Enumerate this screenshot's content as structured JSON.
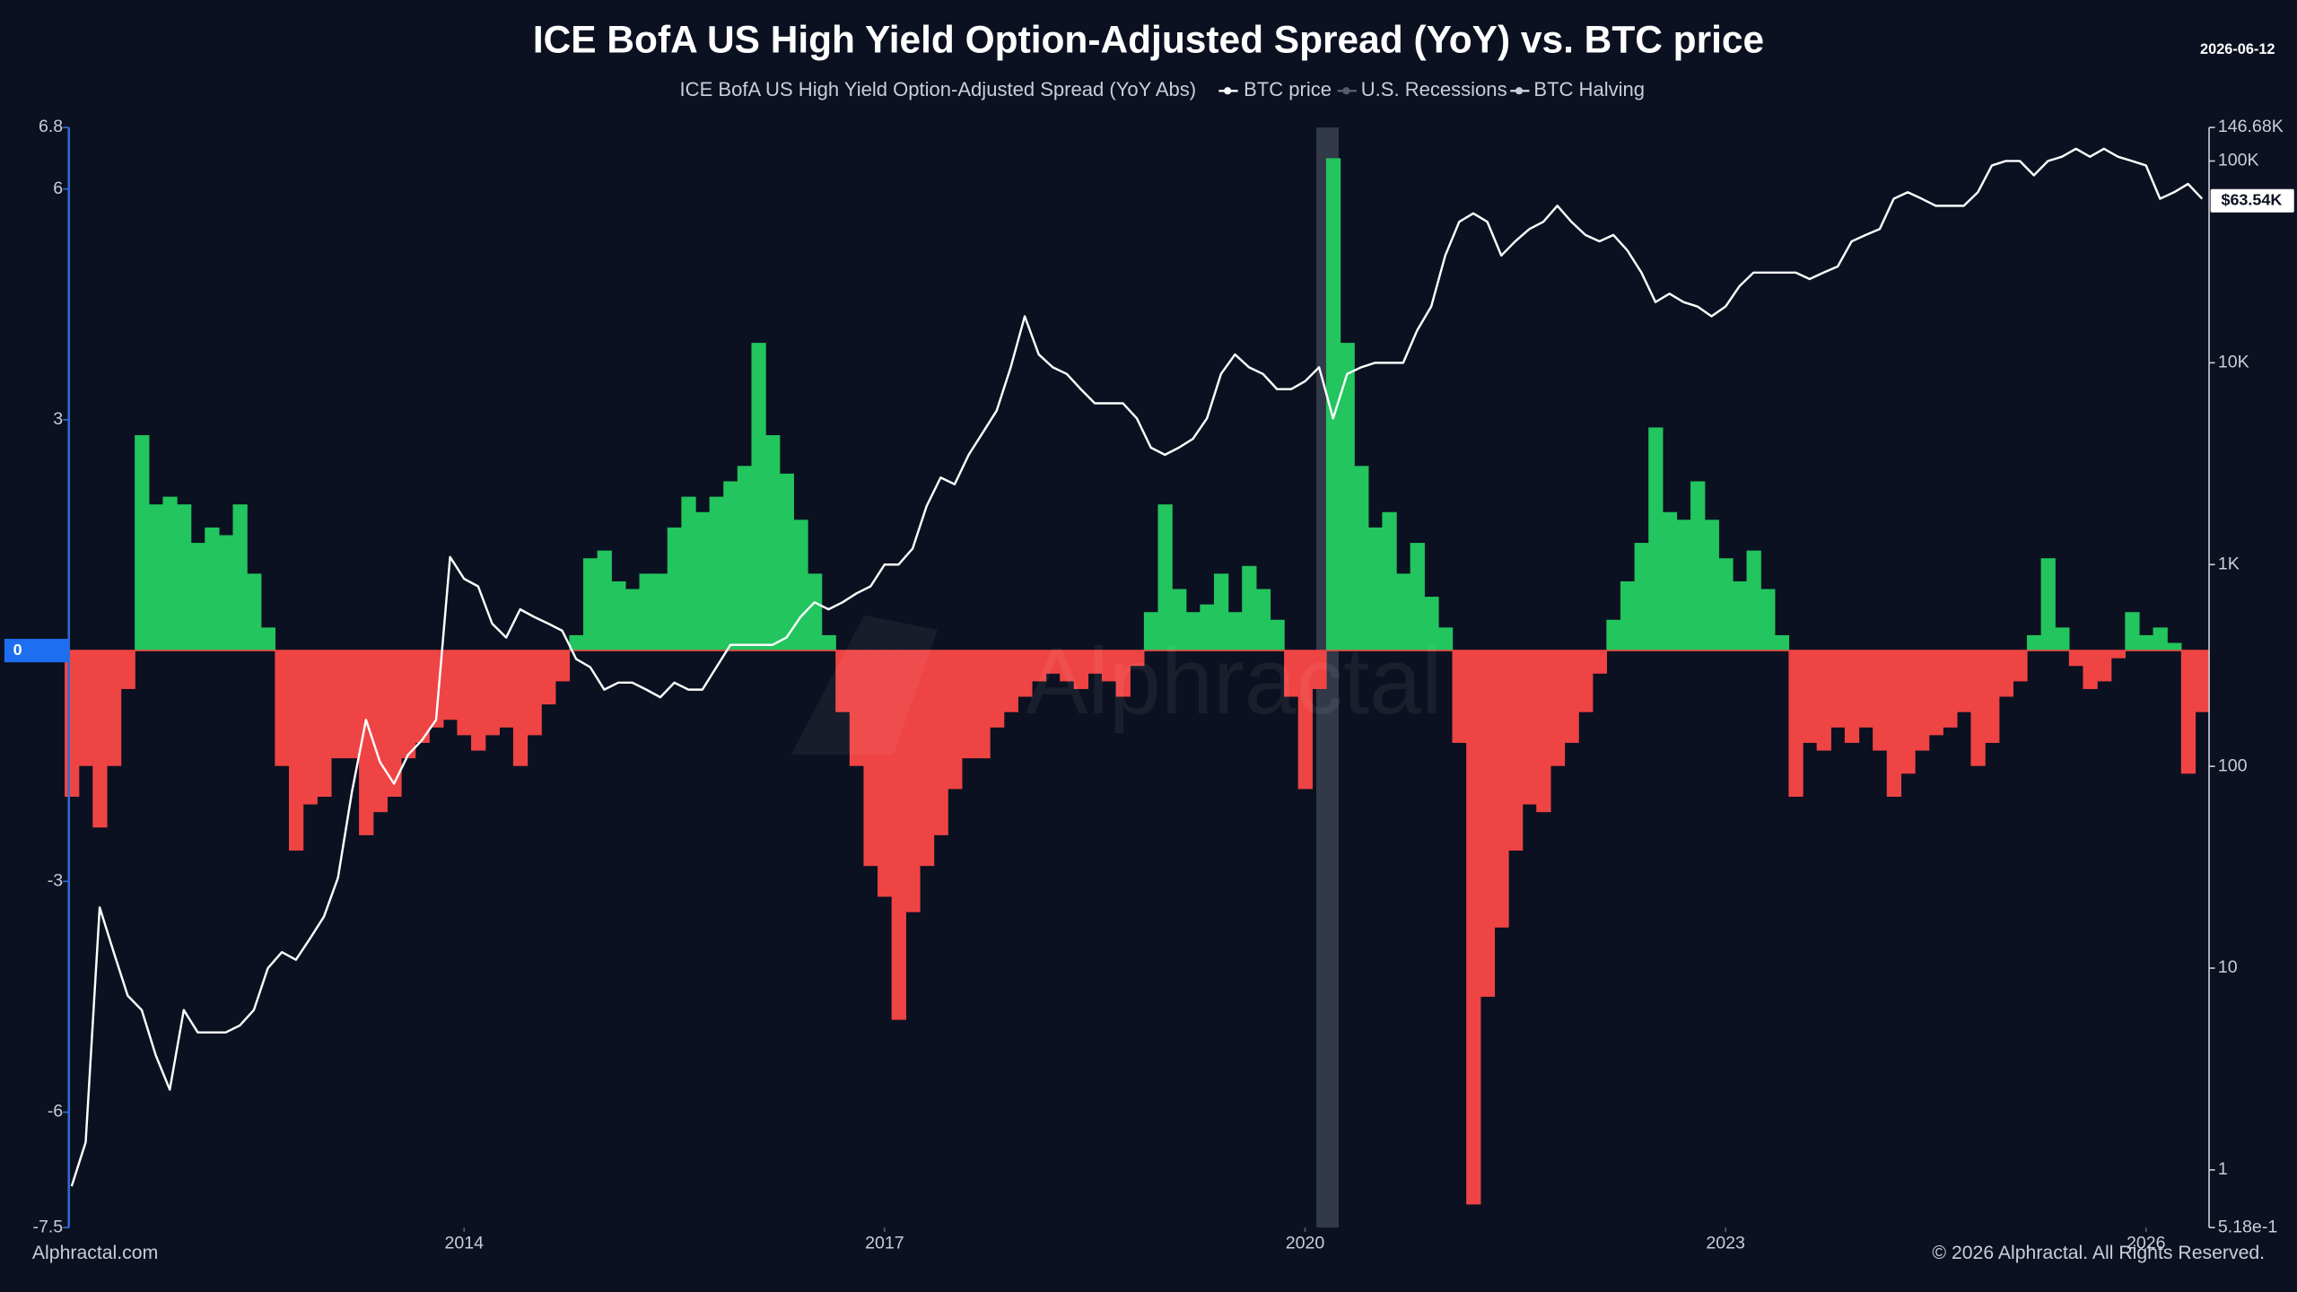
{
  "chart_data": {
    "type": "combo",
    "title": "ICE BofA US High Yield Option-Adjusted Spread (YoY) vs. BTC price",
    "date": "2026-06-12",
    "source": "Alphractal.com",
    "copyright": "© 2026 Alphractal. All Rights Reserved.",
    "watermark": "Alphractal",
    "x": [
      2011.2,
      2011.3,
      2011.4,
      2011.5,
      2011.6,
      2011.7,
      2011.8,
      2011.9,
      2012.0,
      2012.1,
      2012.2,
      2012.3,
      2012.4,
      2012.5,
      2012.6,
      2012.7,
      2012.8,
      2012.9,
      2013.0,
      2013.1,
      2013.2,
      2013.3,
      2013.4,
      2013.5,
      2013.6,
      2013.7,
      2013.8,
      2013.9,
      2014.0,
      2014.1,
      2014.2,
      2014.3,
      2014.4,
      2014.5,
      2014.6,
      2014.7,
      2014.8,
      2014.9,
      2015.0,
      2015.1,
      2015.2,
      2015.3,
      2015.4,
      2015.5,
      2015.6,
      2015.7,
      2015.8,
      2015.9,
      2016.0,
      2016.1,
      2016.2,
      2016.3,
      2016.4,
      2016.5,
      2016.6,
      2016.7,
      2016.8,
      2016.9,
      2017.0,
      2017.1,
      2017.2,
      2017.3,
      2017.4,
      2017.5,
      2017.6,
      2017.7,
      2017.8,
      2017.9,
      2018.0,
      2018.1,
      2018.2,
      2018.3,
      2018.4,
      2018.5,
      2018.6,
      2018.7,
      2018.8,
      2018.9,
      2019.0,
      2019.1,
      2019.2,
      2019.3,
      2019.4,
      2019.5,
      2019.6,
      2019.7,
      2019.8,
      2019.9,
      2020.0,
      2020.1,
      2020.2,
      2020.3,
      2020.4,
      2020.5,
      2020.6,
      2020.7,
      2020.8,
      2020.9,
      2021.0,
      2021.1,
      2021.2,
      2021.3,
      2021.4,
      2021.5,
      2021.6,
      2021.7,
      2021.8,
      2021.9,
      2022.0,
      2022.1,
      2022.2,
      2022.3,
      2022.4,
      2022.5,
      2022.6,
      2022.7,
      2022.8,
      2022.9,
      2023.0,
      2023.1,
      2023.2,
      2023.3,
      2023.4,
      2023.5,
      2023.6,
      2023.7,
      2023.8,
      2023.9,
      2024.0,
      2024.1,
      2024.2,
      2024.3,
      2024.4,
      2024.5,
      2024.6,
      2024.7,
      2024.8,
      2024.9,
      2025.0,
      2025.1,
      2025.2,
      2025.3,
      2025.4,
      2025.5,
      2025.6,
      2025.7,
      2025.8,
      2025.9,
      2026.0,
      2026.1,
      2026.2,
      2026.3,
      2026.4
    ],
    "series": [
      {
        "name": "ICE BofA US High Yield Option-Adjusted Spread (YoY Abs)",
        "type": "bar",
        "colors": {
          "positive": "#22c55e",
          "negative": "#ef4444"
        },
        "values": [
          -1.9,
          -1.5,
          -2.3,
          -1.5,
          -0.5,
          2.8,
          1.9,
          2.0,
          1.9,
          1.4,
          1.6,
          1.5,
          1.9,
          1.0,
          0.3,
          -1.5,
          -2.6,
          -2.0,
          -1.9,
          -1.4,
          -1.4,
          -2.4,
          -2.1,
          -1.9,
          -1.4,
          -1.2,
          -1.0,
          -0.9,
          -1.1,
          -1.3,
          -1.1,
          -1.0,
          -1.5,
          -1.1,
          -0.7,
          -0.4,
          0.2,
          1.2,
          1.3,
          0.9,
          0.8,
          1.0,
          1.0,
          1.6,
          2.0,
          1.8,
          2.0,
          2.2,
          2.4,
          4.0,
          2.8,
          2.3,
          1.7,
          1.0,
          0.2,
          -0.8,
          -1.5,
          -2.8,
          -3.2,
          -4.8,
          -3.4,
          -2.8,
          -2.4,
          -1.8,
          -1.4,
          -1.4,
          -1.0,
          -0.8,
          -0.6,
          -0.4,
          -0.3,
          -0.4,
          -0.5,
          -0.3,
          -0.4,
          -0.6,
          -0.2,
          0.5,
          1.9,
          0.8,
          0.5,
          0.6,
          1.0,
          0.5,
          1.1,
          0.8,
          0.4,
          -0.6,
          -1.8,
          -0.5,
          6.4,
          4.0,
          2.4,
          1.6,
          1.8,
          1.0,
          1.4,
          0.7,
          0.3,
          -1.2,
          -7.2,
          -4.5,
          -3.6,
          -2.6,
          -2.0,
          -2.1,
          -1.5,
          -1.2,
          -0.8,
          -0.3,
          0.4,
          0.9,
          1.4,
          2.9,
          1.8,
          1.7,
          2.2,
          1.7,
          1.2,
          0.9,
          1.3,
          0.8,
          0.2,
          -1.9,
          -1.2,
          -1.3,
          -1.0,
          -1.2,
          -1.0,
          -1.3,
          -1.9,
          -1.6,
          -1.3,
          -1.1,
          -1.0,
          -0.8,
          -1.5,
          -1.2,
          -0.6,
          -0.4,
          0.2,
          1.2,
          0.3,
          -0.2,
          -0.5,
          -0.4,
          -0.1,
          0.5,
          0.2,
          0.3,
          0.1,
          -1.6,
          -0.8
        ]
      },
      {
        "name": "BTC price",
        "type": "line",
        "axis": "y2",
        "color": "#ffffff",
        "values": [
          0.83,
          1.37,
          20,
          12,
          7.3,
          6.2,
          3.7,
          2.5,
          6.2,
          4.8,
          4.8,
          4.8,
          5.2,
          6.2,
          10,
          12,
          11,
          14,
          18,
          28,
          75,
          170,
          105,
          82,
          114,
          135,
          170,
          1090,
          850,
          780,
          510,
          435,
          600,
          550,
          510,
          470,
          340,
          310,
          240,
          260,
          260,
          240,
          220,
          260,
          240,
          240,
          310,
          400,
          400,
          400,
          400,
          435,
          550,
          650,
          600,
          650,
          720,
          780,
          1000,
          1000,
          1200,
          1950,
          2700,
          2500,
          3500,
          4500,
          5800,
          9500,
          17000,
          11000,
          9500,
          8800,
          7400,
          6300,
          6300,
          6300,
          5300,
          3800,
          3500,
          3800,
          4200,
          5300,
          8800,
          11000,
          9500,
          8800,
          7400,
          7400,
          8100,
          9500,
          5300,
          8800,
          9500,
          10000,
          10000,
          10000,
          14500,
          19000,
          34000,
          50000,
          55000,
          50000,
          34000,
          40000,
          46000,
          50000,
          60000,
          50000,
          43000,
          40000,
          43000,
          36000,
          28000,
          20000,
          22000,
          20000,
          19000,
          17000,
          19000,
          24000,
          28000,
          28000,
          28000,
          28000,
          26000,
          28000,
          30000,
          40000,
          43000,
          46000,
          65000,
          70000,
          65000,
          60000,
          60000,
          60000,
          70000,
          95000,
          100000,
          100000,
          85000,
          100000,
          105000,
          115000,
          105000,
          115000,
          105000,
          100000,
          95000,
          65000,
          70000,
          77000,
          65000
        ]
      }
    ],
    "recessions": {
      "name": "U.S. Recessions",
      "color": "#3a4150",
      "ranges": [
        [
          2020.08,
          2020.24
        ]
      ]
    },
    "halving": {
      "name": "BTC Halving"
    },
    "current_price": 63540,
    "current_price_label": "$63.54K",
    "y_marker": 0,
    "xlim": [
      2011.18,
      2026.45
    ],
    "xticks": [
      2014,
      2017,
      2020,
      2023,
      2026
    ],
    "ylim": [
      -7.5,
      6.8
    ],
    "yticks": [
      -7.5,
      -6,
      -3,
      0,
      3,
      6,
      6.8
    ],
    "y2lim": [
      0.518,
      146680
    ],
    "y2scale": "log",
    "y2ticks": [
      {
        "value": 0.518,
        "label": "5.18e-1"
      },
      1,
      10,
      100,
      {
        "value": 1000,
        "label": "1K"
      },
      {
        "value": 10000,
        "label": "10K"
      },
      {
        "value": 100000,
        "label": "100K"
      },
      {
        "value": 146680,
        "label": "146.68K"
      }
    ],
    "grid": false
  }
}
